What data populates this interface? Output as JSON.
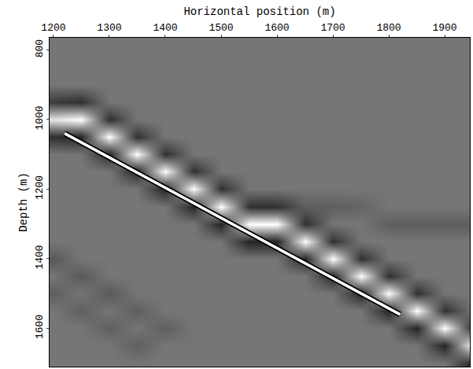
{
  "chart_data": {
    "type": "heatmap",
    "xlabel": "Horizontal position (m)",
    "ylabel": "Depth (m)",
    "xlim": [
      1193,
      1945
    ],
    "ylim": [
      1710,
      765
    ],
    "xticks": [
      1200,
      1300,
      1400,
      1500,
      1600,
      1700,
      1800,
      1900
    ],
    "yticks": [
      800,
      1000,
      1200,
      1400,
      1600
    ],
    "grid": false,
    "x": [
      1200,
      1250,
      1300,
      1350,
      1400,
      1450,
      1500,
      1550,
      1600,
      1650,
      1700,
      1750,
      1800,
      1850,
      1900,
      1950
    ],
    "y": [
      750,
      800,
      850,
      900,
      950,
      1000,
      1050,
      1100,
      1150,
      1200,
      1250,
      1300,
      1350,
      1400,
      1450,
      1500,
      1550,
      1600,
      1650,
      1700
    ],
    "zlim": [
      -1,
      1
    ],
    "cells": [
      [
        0,
        0,
        0,
        0,
        0,
        0,
        0,
        0,
        0,
        0,
        0,
        0,
        0,
        0,
        0,
        0
      ],
      [
        0,
        0,
        0,
        0,
        0,
        0,
        0,
        0,
        0,
        0,
        0,
        0,
        0,
        0,
        0,
        0
      ],
      [
        0,
        0,
        0,
        0,
        0,
        0,
        0,
        0,
        0,
        0,
        0,
        0,
        0,
        0,
        0,
        0
      ],
      [
        0,
        0,
        0,
        0,
        0,
        0,
        0,
        0,
        0,
        0,
        0,
        0,
        0,
        0,
        0,
        0
      ],
      [
        -0.5,
        -0.6,
        0,
        0,
        0,
        0,
        0,
        0,
        0,
        0,
        0,
        0,
        0,
        0,
        0,
        0
      ],
      [
        0.8,
        1,
        -0.6,
        0,
        0,
        0,
        0,
        0,
        0,
        0,
        0,
        0,
        0,
        0,
        0,
        0
      ],
      [
        -0.6,
        -0.7,
        1,
        -0.6,
        0,
        0,
        0,
        0,
        0,
        0,
        0,
        0,
        0,
        0,
        0,
        0
      ],
      [
        0,
        0,
        -0.7,
        1,
        -0.6,
        0,
        0,
        0,
        0,
        0,
        0,
        0,
        0,
        0,
        0,
        0
      ],
      [
        0,
        0,
        0,
        -0.7,
        1,
        -0.6,
        0,
        0,
        0,
        0,
        0,
        0,
        0,
        0,
        0,
        0
      ],
      [
        0,
        0,
        0,
        0,
        -0.7,
        1,
        -0.6,
        0,
        0,
        0,
        0,
        0,
        0,
        0,
        0,
        0
      ],
      [
        0,
        0,
        0,
        0,
        0,
        -0.7,
        1,
        -0.6,
        -0.6,
        -0.2,
        -0.2,
        -0.15,
        0,
        0,
        0,
        0
      ],
      [
        0,
        0,
        0,
        0,
        0,
        0,
        -0.7,
        1,
        1,
        -0.6,
        0,
        0,
        -0.2,
        -0.2,
        -0.2,
        -0.2
      ],
      [
        0,
        0,
        0,
        0,
        0,
        0,
        0,
        -0.7,
        -0.7,
        1,
        -0.6,
        0,
        0,
        0,
        0,
        0
      ],
      [
        -0.25,
        0,
        0,
        0,
        0,
        0,
        0,
        0,
        0,
        -0.7,
        1,
        -0.6,
        0,
        0,
        0,
        0
      ],
      [
        0,
        -0.25,
        0,
        0,
        0,
        0,
        0,
        0,
        0,
        0,
        -0.7,
        1,
        -0.6,
        0,
        0,
        0
      ],
      [
        -0.2,
        0,
        -0.25,
        0,
        0,
        0,
        0,
        0,
        0,
        0,
        0,
        -0.7,
        1,
        -0.6,
        0,
        0
      ],
      [
        0,
        -0.2,
        0,
        -0.2,
        0,
        0,
        0,
        0,
        0,
        0,
        0,
        0,
        -0.7,
        1,
        -0.6,
        0
      ],
      [
        0,
        0,
        -0.2,
        0,
        -0.2,
        0,
        0,
        0,
        0,
        0,
        0,
        0,
        0,
        -0.7,
        1,
        -0.6
      ],
      [
        0,
        0,
        0,
        -0.2,
        0,
        0,
        0,
        0,
        0,
        0,
        0,
        0,
        0,
        0,
        -0.7,
        1
      ],
      [
        0,
        0,
        0,
        0,
        0,
        0,
        0,
        0,
        0,
        0,
        0,
        0,
        0,
        0,
        0,
        -0.7
      ]
    ],
    "line": {
      "x": [
        1220,
        1820
      ],
      "y": [
        1040,
        1560
      ]
    }
  }
}
